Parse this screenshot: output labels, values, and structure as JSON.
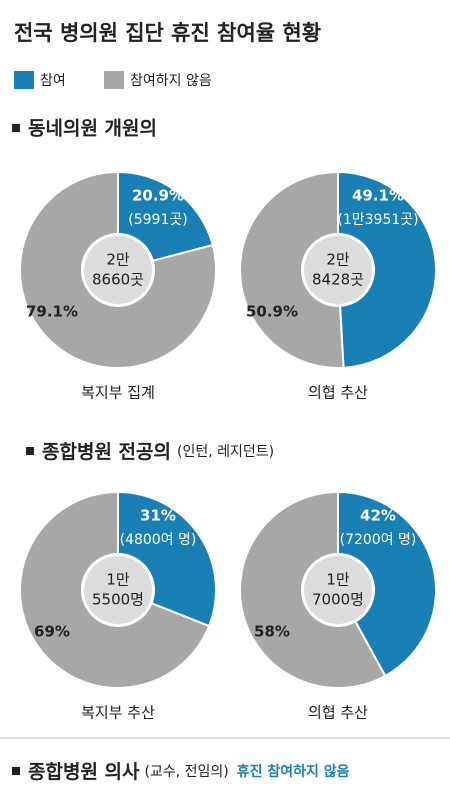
{
  "title": "전국 병의원 집단 휴진 참여율 현황",
  "legend": [
    "참여",
    "참여하지 않음"
  ],
  "sections": [
    {
      "heading": "동네의원 개원의"
    },
    {
      "heading": "종합병원 전공의",
      "note": "(인턴, 레지던트)"
    },
    {
      "heading": "종합병원 의사",
      "note": "(교수, 전임의)",
      "status": "휴진 참여하지 않음"
    }
  ],
  "chart_data": [
    {
      "type": "pie",
      "values": [
        20.9,
        79.1
      ],
      "value_labels": [
        "20.9%",
        "79.1%"
      ],
      "detail": "(5991곳)",
      "center": [
        "2만",
        "8660곳"
      ],
      "caption": "복지부 집계",
      "colors": [
        "#1a7fb5",
        "#a7a7a7"
      ]
    },
    {
      "type": "pie",
      "values": [
        49.1,
        50.9
      ],
      "value_labels": [
        "49.1%",
        "50.9%"
      ],
      "detail": "(1만3951곳)",
      "center": [
        "2만",
        "8428곳"
      ],
      "caption": "의협 추산",
      "colors": [
        "#1a7fb5",
        "#a7a7a7"
      ]
    },
    {
      "type": "pie",
      "values": [
        31,
        69
      ],
      "value_labels": [
        "31%",
        "69%"
      ],
      "detail": "(4800여 명)",
      "center": [
        "1만",
        "5500명"
      ],
      "caption": "복지부 추산",
      "colors": [
        "#1a7fb5",
        "#a7a7a7"
      ]
    },
    {
      "type": "pie",
      "values": [
        42,
        58
      ],
      "value_labels": [
        "42%",
        "58%"
      ],
      "detail": "(7200여 명)",
      "center": [
        "1만",
        "7000명"
      ],
      "caption": "의협 추산",
      "colors": [
        "#1a7fb5",
        "#a7a7a7"
      ]
    }
  ]
}
